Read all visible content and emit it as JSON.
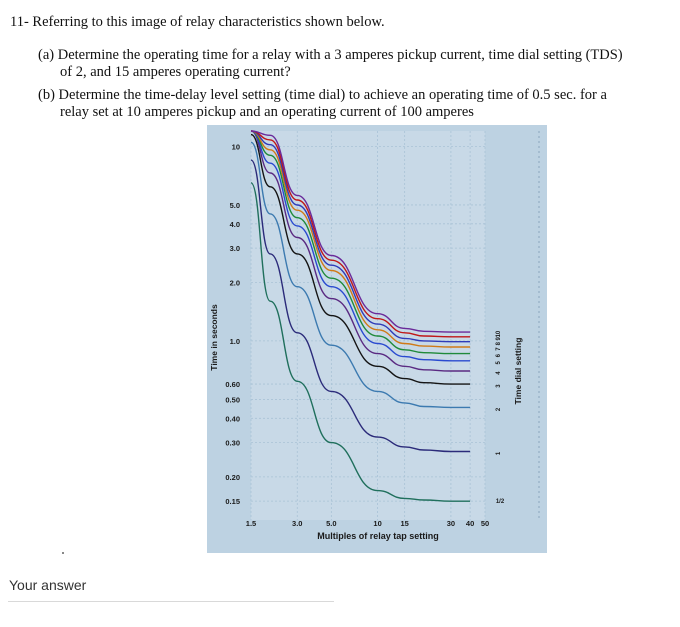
{
  "question": {
    "title": "11- Referring to this image of relay characteristics shown below.",
    "part_a_line1": "(a) Determine the operating time for a relay with a 3 amperes pickup current, time dial setting (TDS)",
    "part_a_line2": "of 2, and 15 amperes operating current?",
    "part_b_line1": "(b) Determine the time-delay level setting (time dial) to achieve an operating time of 0.5 sec. for a",
    "part_b_line2": "relay set at 10 amperes pickup and an operating current of 100 amperes"
  },
  "answer": {
    "label": "Your answer"
  },
  "chart_data": {
    "type": "line",
    "xlabel": "Multiples of relay tap setting",
    "ylabel": "Time in seconds",
    "right_label": "Time dial setting",
    "x_scale": "log",
    "y_scale": "log",
    "xlim": [
      1.5,
      50
    ],
    "ylim": [
      0.12,
      12
    ],
    "x_ticks": [
      "1.5",
      "3.0",
      "5.0",
      "10",
      "15",
      "30",
      "40",
      "50"
    ],
    "y_ticks": [
      "10",
      "5.0",
      "4.0",
      "3.0",
      "2.0",
      "1.0",
      "0.60",
      "0.50",
      "0.40",
      "0.30",
      "0.20",
      "0.15"
    ],
    "grid": true,
    "series": [
      {
        "name": "1/2",
        "color": "#1f6f5c",
        "x": [
          1.5,
          2,
          3,
          5,
          10,
          15,
          20,
          30,
          40
        ],
        "y": [
          6.5,
          1.6,
          0.62,
          0.3,
          0.17,
          0.155,
          0.152,
          0.15,
          0.15
        ]
      },
      {
        "name": "1",
        "color": "#2b2b7a",
        "x": [
          1.5,
          2,
          3,
          5,
          10,
          15,
          20,
          30,
          40
        ],
        "y": [
          8.5,
          2.8,
          1.1,
          0.55,
          0.32,
          0.285,
          0.275,
          0.27,
          0.27
        ]
      },
      {
        "name": "2",
        "color": "#3c7ab0",
        "x": [
          1.5,
          2,
          3,
          5,
          10,
          15,
          20,
          30,
          40
        ],
        "y": [
          10.5,
          4.5,
          1.9,
          0.95,
          0.55,
          0.48,
          0.46,
          0.455,
          0.455
        ]
      },
      {
        "name": "3",
        "color": "#141414",
        "x": [
          1.5,
          2,
          3,
          5,
          10,
          15,
          20,
          30,
          40
        ],
        "y": [
          11.5,
          6.2,
          2.8,
          1.35,
          0.74,
          0.64,
          0.61,
          0.6,
          0.6
        ]
      },
      {
        "name": "4",
        "color": "#5a2a82",
        "x": [
          1.5,
          2,
          3,
          5,
          10,
          15,
          20,
          30,
          40
        ],
        "y": [
          12,
          7.3,
          3.4,
          1.65,
          0.86,
          0.74,
          0.71,
          0.7,
          0.7
        ]
      },
      {
        "name": "5",
        "color": "#2a4ad0",
        "x": [
          1.5,
          2,
          3,
          5,
          10,
          15,
          20,
          30,
          40
        ],
        "y": [
          12,
          8.2,
          3.9,
          1.9,
          0.97,
          0.83,
          0.8,
          0.79,
          0.79
        ]
      },
      {
        "name": "6",
        "color": "#1f8a3a",
        "x": [
          1.5,
          2,
          3,
          5,
          10,
          15,
          20,
          30,
          40
        ],
        "y": [
          12,
          9.0,
          4.3,
          2.1,
          1.06,
          0.9,
          0.87,
          0.86,
          0.86
        ]
      },
      {
        "name": "7",
        "color": "#d07a18",
        "x": [
          1.5,
          2,
          3,
          5,
          10,
          15,
          20,
          30,
          40
        ],
        "y": [
          12,
          9.6,
          4.7,
          2.3,
          1.14,
          0.97,
          0.94,
          0.93,
          0.93
        ]
      },
      {
        "name": "8",
        "color": "#2f3bb8",
        "x": [
          1.5,
          2,
          3,
          5,
          10,
          15,
          20,
          30,
          40
        ],
        "y": [
          12,
          10.2,
          5.0,
          2.45,
          1.22,
          1.03,
          1.0,
          0.99,
          0.99
        ]
      },
      {
        "name": "9",
        "color": "#c01818",
        "x": [
          1.5,
          2,
          3,
          5,
          10,
          15,
          20,
          30,
          40
        ],
        "y": [
          12,
          10.8,
          5.3,
          2.6,
          1.3,
          1.1,
          1.06,
          1.05,
          1.05
        ]
      },
      {
        "name": "10",
        "color": "#6a2a9a",
        "x": [
          1.5,
          2,
          3,
          5,
          10,
          15,
          20,
          30,
          40
        ],
        "y": [
          12,
          11.4,
          5.6,
          2.75,
          1.38,
          1.16,
          1.12,
          1.11,
          1.11
        ]
      }
    ]
  }
}
